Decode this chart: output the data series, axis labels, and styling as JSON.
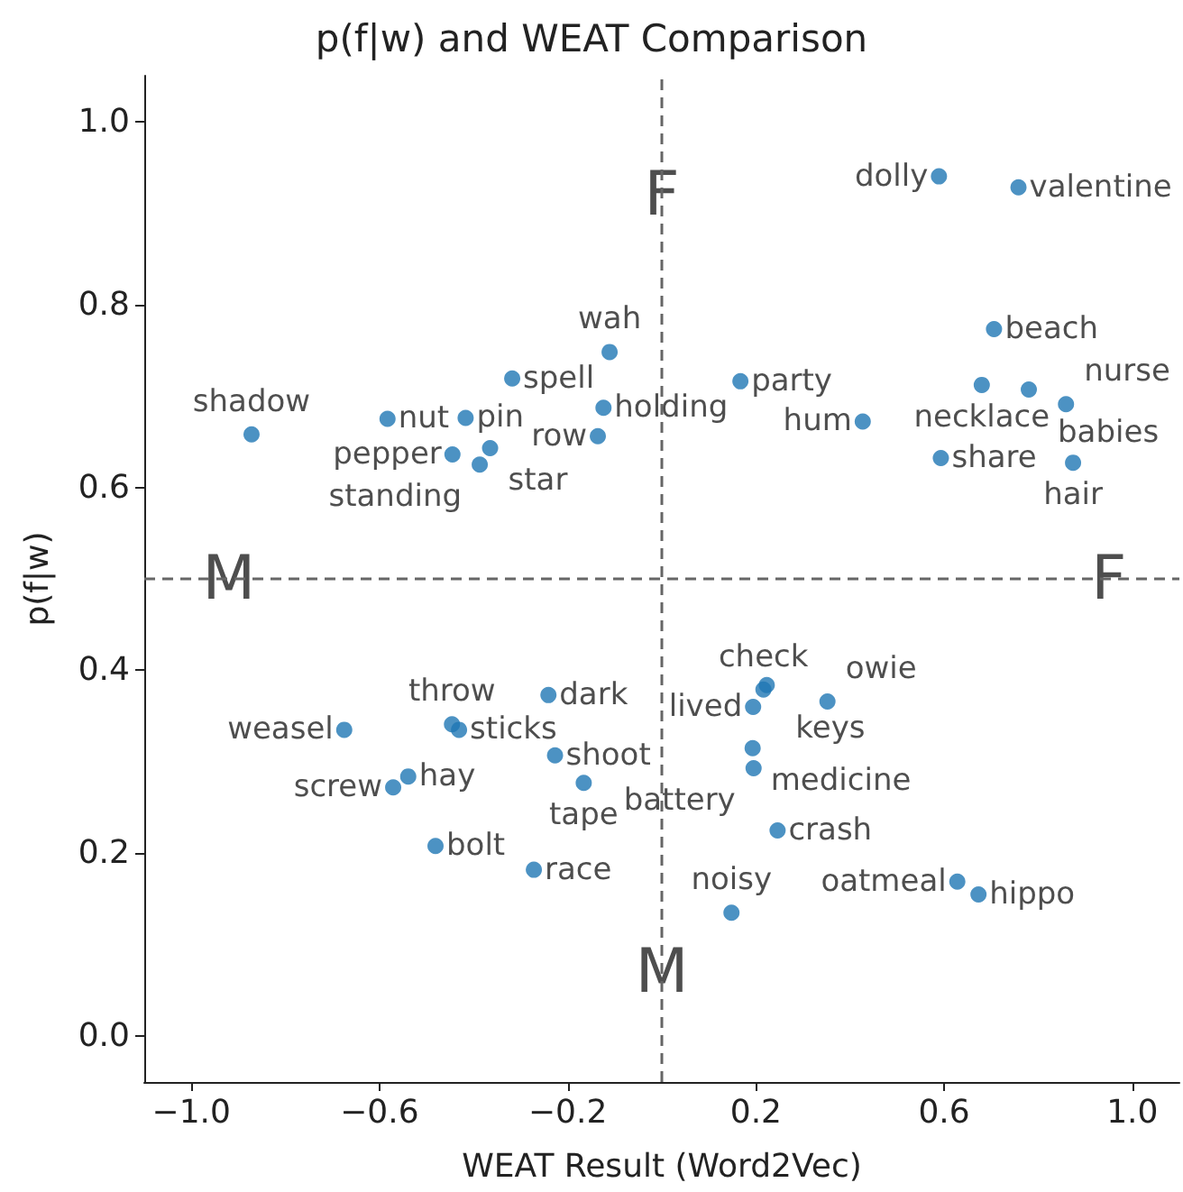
{
  "chart_data": {
    "type": "scatter",
    "title": "p(f|w) and WEAT Comparison",
    "xlabel": "WEAT Result (Word2Vec)",
    "ylabel": "p(f|w)",
    "xlim": [
      -1.1,
      1.1
    ],
    "ylim": [
      -0.05,
      1.05
    ],
    "xticks": [
      {
        "value": -1.0,
        "label": "−1.0"
      },
      {
        "value": -0.6,
        "label": "−0.6"
      },
      {
        "value": -0.2,
        "label": "−0.2"
      },
      {
        "value": 0.2,
        "label": "0.2"
      },
      {
        "value": 0.6,
        "label": "0.6"
      },
      {
        "value": 1.0,
        "label": "1.0"
      }
    ],
    "yticks": [
      {
        "value": 0,
        "label": "0.0"
      },
      {
        "value": 0.2,
        "label": "0.2"
      },
      {
        "value": 0.4,
        "label": "0.4"
      },
      {
        "value": 0.6,
        "label": "0.6"
      },
      {
        "value": 0.8,
        "label": "0.8"
      },
      {
        "value": 1.0,
        "label": "1.0"
      }
    ],
    "grid": false,
    "marker": "circle",
    "series": [
      {
        "color": "#1f77b4",
        "x": [
          -0.872,
          -0.583,
          -0.417,
          -0.318,
          -0.111,
          -0.124,
          -0.136,
          -0.365,
          -0.445,
          -0.387,
          0.167,
          0.589,
          0.758,
          0.706,
          0.68,
          0.78,
          0.859,
          0.427,
          0.593,
          0.874,
          -0.675,
          -0.446,
          -0.431,
          -0.241,
          -0.227,
          -0.166,
          -0.539,
          -0.571,
          -0.481,
          -0.272,
          0.216,
          0.223,
          0.194,
          0.352,
          0.193,
          0.195,
          0.246,
          0.628,
          0.673,
          0.148
        ],
        "values": [
          0.658,
          0.675,
          0.676,
          0.719,
          0.748,
          0.687,
          0.656,
          0.643,
          0.636,
          0.625,
          0.716,
          0.94,
          0.928,
          0.773,
          0.712,
          0.707,
          0.691,
          0.672,
          0.632,
          0.627,
          0.335,
          0.341,
          0.335,
          0.373,
          0.307,
          0.277,
          0.284,
          0.272,
          0.208,
          0.182,
          0.379,
          0.384,
          0.36,
          0.366,
          0.315,
          0.293,
          0.225,
          0.169,
          0.155,
          0.135
        ],
        "value_labels": [
          "shadow",
          "nut",
          "pin",
          "spell",
          "wah",
          "holding",
          "row",
          "star",
          "pepper",
          "standing",
          "party",
          "dolly",
          "valentine",
          "beach",
          "necklace",
          "babies",
          "nurse",
          "hum",
          "share",
          "hair",
          "weasel",
          "throw",
          "sticks",
          "dark",
          "shoot",
          "tape",
          "hay",
          "screw",
          "bolt",
          "race",
          "check",
          "keys",
          "lived",
          "owie",
          "medicine",
          "battery",
          "crash",
          "oatmeal",
          "hippo",
          "noisy"
        ]
      }
    ],
    "ref_lines": [
      {
        "axis": "x",
        "value": 0,
        "color": "#666666",
        "line_style": "dashed"
      },
      {
        "axis": "y",
        "value": 0.5,
        "color": "#666666",
        "line_style": "dashed"
      }
    ],
    "annotations": [
      {
        "text": "F",
        "x": 0,
        "y": 0.92
      },
      {
        "text": "M",
        "x": 0,
        "y": 0.07
      },
      {
        "text": "M",
        "x": -0.92,
        "y": 0.5
      },
      {
        "text": "F",
        "x": 0.95,
        "y": 0.5
      }
    ]
  }
}
